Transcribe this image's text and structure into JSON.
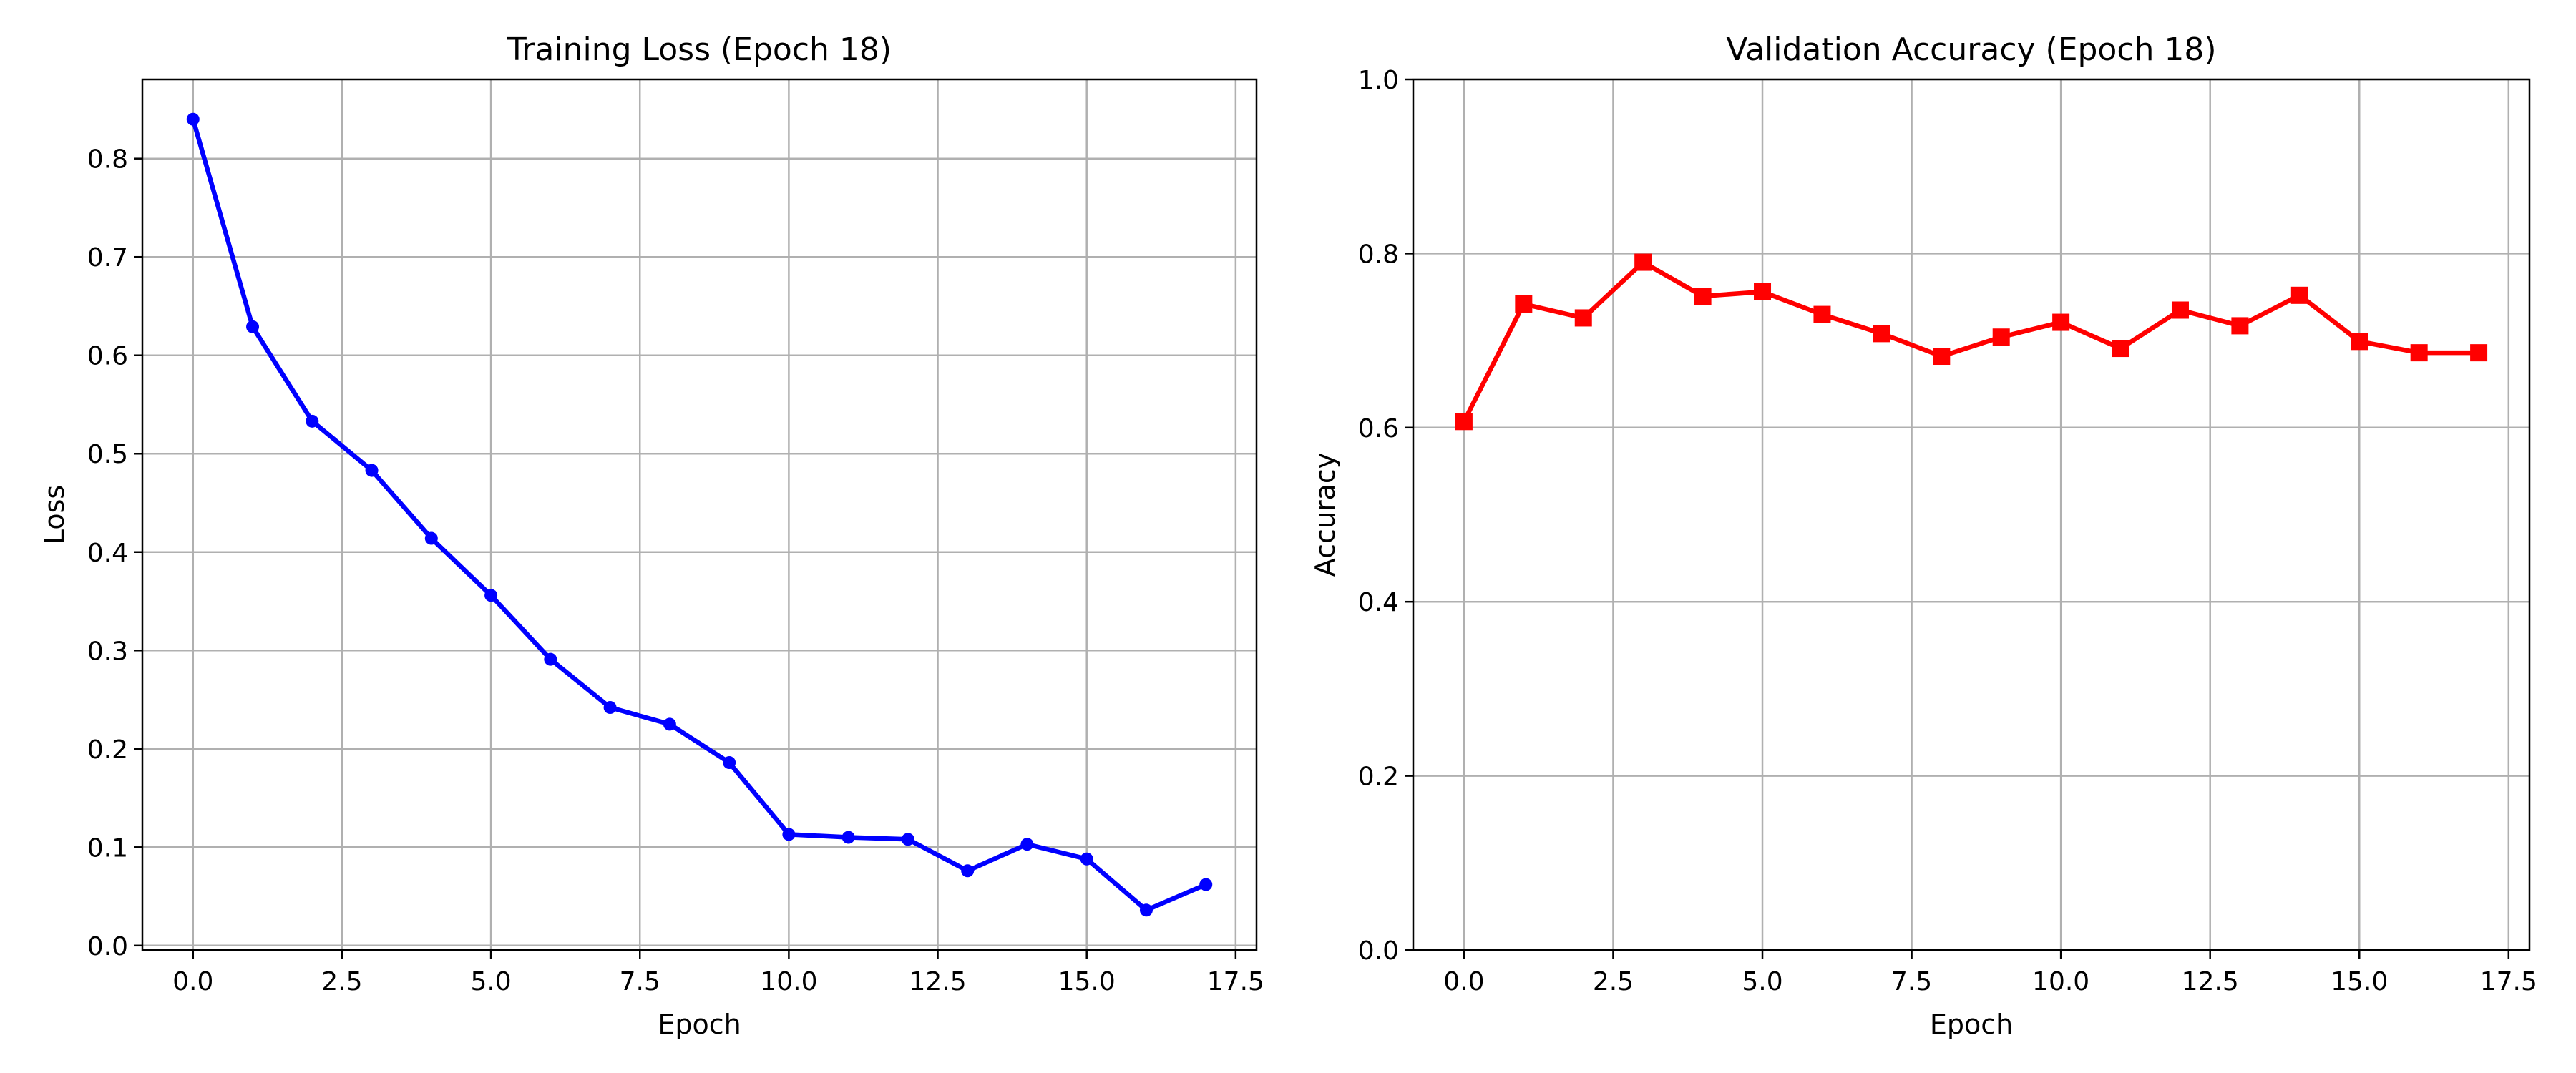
{
  "chart_data": [
    {
      "type": "line",
      "title": "Training Loss (Epoch 18)",
      "xlabel": "Epoch",
      "ylabel": "Loss",
      "xlim": [
        -0.85,
        17.85
      ],
      "ylim": [
        -0.0045,
        0.8805
      ],
      "x_ticks": [
        0.0,
        2.5,
        5.0,
        7.5,
        10.0,
        12.5,
        15.0,
        17.5
      ],
      "x_tick_labels": [
        "0.0",
        "2.5",
        "5.0",
        "7.5",
        "10.0",
        "12.5",
        "15.0",
        "17.5"
      ],
      "y_ticks": [
        0.0,
        0.1,
        0.2,
        0.3,
        0.4,
        0.5,
        0.6,
        0.7,
        0.8
      ],
      "y_tick_labels": [
        "0.0",
        "0.1",
        "0.2",
        "0.3",
        "0.4",
        "0.5",
        "0.6",
        "0.7",
        "0.8"
      ],
      "grid": true,
      "x": [
        0,
        1,
        2,
        3,
        4,
        5,
        6,
        7,
        8,
        9,
        10,
        11,
        12,
        13,
        14,
        15,
        16,
        17
      ],
      "series": [
        {
          "color": "#0000ff",
          "marker": "circle",
          "values": [
            0.84,
            0.629,
            0.533,
            0.483,
            0.414,
            0.356,
            0.291,
            0.242,
            0.225,
            0.186,
            0.113,
            0.11,
            0.108,
            0.076,
            0.103,
            0.088,
            0.036,
            0.062
          ]
        }
      ]
    },
    {
      "type": "line",
      "title": "Validation Accuracy (Epoch 18)",
      "xlabel": "Epoch",
      "ylabel": "Accuracy",
      "xlim": [
        -0.85,
        17.85
      ],
      "ylim": [
        0.0,
        1.0
      ],
      "x_ticks": [
        0.0,
        2.5,
        5.0,
        7.5,
        10.0,
        12.5,
        15.0,
        17.5
      ],
      "x_tick_labels": [
        "0.0",
        "2.5",
        "5.0",
        "7.5",
        "10.0",
        "12.5",
        "15.0",
        "17.5"
      ],
      "y_ticks": [
        0.0,
        0.2,
        0.4,
        0.6,
        0.8,
        1.0
      ],
      "y_tick_labels": [
        "0.0",
        "0.2",
        "0.4",
        "0.6",
        "0.8",
        "1.0"
      ],
      "grid": true,
      "x": [
        0,
        1,
        2,
        3,
        4,
        5,
        6,
        7,
        8,
        9,
        10,
        11,
        12,
        13,
        14,
        15,
        16,
        17
      ],
      "series": [
        {
          "color": "#ff0000",
          "marker": "square",
          "values": [
            0.607,
            0.742,
            0.726,
            0.79,
            0.751,
            0.756,
            0.73,
            0.708,
            0.682,
            0.704,
            0.721,
            0.691,
            0.735,
            0.717,
            0.752,
            0.699,
            0.686,
            0.686
          ]
        }
      ]
    }
  ]
}
